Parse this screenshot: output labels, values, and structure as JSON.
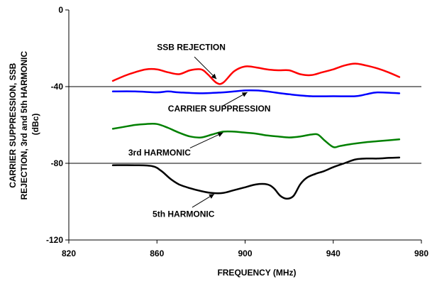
{
  "chart_data": {
    "type": "line",
    "title": "",
    "xlabel": "FREQUENCY (MHz)",
    "ylabel_lines": [
      "CARRIER SUPPRESSION, SSB",
      "REJECTION, 3rd and 5th HARMONIC",
      "(dBc)"
    ],
    "xlim": [
      820,
      980
    ],
    "ylim": [
      -120,
      0
    ],
    "x_ticks": [
      820,
      860,
      900,
      940,
      980
    ],
    "y_ticks": [
      0,
      -40,
      -80,
      -120
    ],
    "x_tick_labels": [
      "820",
      "860",
      "900",
      "940",
      "980"
    ],
    "y_tick_labels": [
      "0",
      "-40",
      "-80",
      "-120"
    ],
    "grid": "horizontal lines at -40 and -80",
    "series": [
      {
        "name": "SSB REJECTION",
        "color": "#ff0000",
        "points": [
          [
            840,
            -37
          ],
          [
            845,
            -34.5
          ],
          [
            850,
            -32.5
          ],
          [
            855,
            -31
          ],
          [
            860,
            -31
          ],
          [
            865,
            -32.5
          ],
          [
            870,
            -33.5
          ],
          [
            875,
            -31.5
          ],
          [
            880,
            -31
          ],
          [
            883,
            -33.5
          ],
          [
            887,
            -38
          ],
          [
            890,
            -38
          ],
          [
            895,
            -32
          ],
          [
            900,
            -29.5
          ],
          [
            905,
            -30
          ],
          [
            910,
            -31
          ],
          [
            915,
            -31.5
          ],
          [
            920,
            -31.5
          ],
          [
            925,
            -33.5
          ],
          [
            930,
            -34
          ],
          [
            935,
            -32.5
          ],
          [
            940,
            -31
          ],
          [
            945,
            -29
          ],
          [
            950,
            -28
          ],
          [
            955,
            -29
          ],
          [
            960,
            -30.5
          ],
          [
            965,
            -32.5
          ],
          [
            970,
            -35
          ]
        ]
      },
      {
        "name": "CARRIER SUPPRESSION",
        "color": "#0000ff",
        "points": [
          [
            840,
            -42.5
          ],
          [
            850,
            -42.5
          ],
          [
            860,
            -43
          ],
          [
            865,
            -42.5
          ],
          [
            870,
            -43
          ],
          [
            880,
            -43.5
          ],
          [
            890,
            -43
          ],
          [
            895,
            -42.5
          ],
          [
            900,
            -42
          ],
          [
            905,
            -42
          ],
          [
            910,
            -42.5
          ],
          [
            920,
            -44
          ],
          [
            930,
            -45
          ],
          [
            940,
            -45
          ],
          [
            950,
            -45
          ],
          [
            955,
            -44
          ],
          [
            960,
            -43
          ],
          [
            970,
            -43.5
          ]
        ]
      },
      {
        "name": "3rd HARMONIC",
        "color": "#008000",
        "points": [
          [
            840,
            -62
          ],
          [
            845,
            -61
          ],
          [
            850,
            -60
          ],
          [
            855,
            -59.5
          ],
          [
            860,
            -59.5
          ],
          [
            865,
            -61.5
          ],
          [
            870,
            -64
          ],
          [
            875,
            -66
          ],
          [
            880,
            -66.5
          ],
          [
            885,
            -65
          ],
          [
            890,
            -63.5
          ],
          [
            895,
            -63.5
          ],
          [
            900,
            -64
          ],
          [
            905,
            -64.5
          ],
          [
            910,
            -65.5
          ],
          [
            915,
            -66
          ],
          [
            920,
            -66.5
          ],
          [
            925,
            -66
          ],
          [
            930,
            -65
          ],
          [
            933,
            -65
          ],
          [
            936,
            -68
          ],
          [
            940,
            -71.5
          ],
          [
            943,
            -71
          ],
          [
            948,
            -70
          ],
          [
            955,
            -69
          ],
          [
            960,
            -68.5
          ],
          [
            965,
            -68
          ],
          [
            970,
            -67.5
          ]
        ]
      },
      {
        "name": "5th HARMONIC",
        "color": "#000000",
        "points": [
          [
            840,
            -81
          ],
          [
            850,
            -81
          ],
          [
            858,
            -81.5
          ],
          [
            862,
            -84
          ],
          [
            866,
            -88
          ],
          [
            870,
            -91
          ],
          [
            875,
            -93
          ],
          [
            880,
            -94.5
          ],
          [
            885,
            -95.5
          ],
          [
            890,
            -95.5
          ],
          [
            895,
            -94
          ],
          [
            900,
            -92.5
          ],
          [
            905,
            -91
          ],
          [
            910,
            -91
          ],
          [
            913,
            -93
          ],
          [
            916,
            -97
          ],
          [
            919,
            -98.5
          ],
          [
            922,
            -97
          ],
          [
            925,
            -91
          ],
          [
            928,
            -87.5
          ],
          [
            932,
            -85.5
          ],
          [
            936,
            -84
          ],
          [
            940,
            -82
          ],
          [
            945,
            -80
          ],
          [
            950,
            -78
          ],
          [
            955,
            -77.5
          ],
          [
            960,
            -77.5
          ],
          [
            965,
            -77.2
          ],
          [
            970,
            -77
          ]
        ]
      }
    ],
    "annotations": [
      {
        "text": "SSB REJECTION",
        "x": 860,
        "y": -21,
        "arrow_from": [
          877,
          -24.5
        ],
        "arrow_to": [
          887,
          -36
        ]
      },
      {
        "text": "CARRIER SUPPRESSION",
        "x": 865,
        "y": -53,
        "arrow_from": [
          890,
          -50
        ],
        "arrow_to": [
          901,
          -43
        ]
      },
      {
        "text": "3rd HARMONIC",
        "x": 847,
        "y": -76,
        "arrow_from": [
          875,
          -72
        ],
        "arrow_to": [
          890,
          -64
        ]
      },
      {
        "text": "5th HARMONIC",
        "x": 858,
        "y": -108,
        "arrow_from": [
          876,
          -103
        ],
        "arrow_to": [
          886,
          -96
        ]
      }
    ]
  }
}
